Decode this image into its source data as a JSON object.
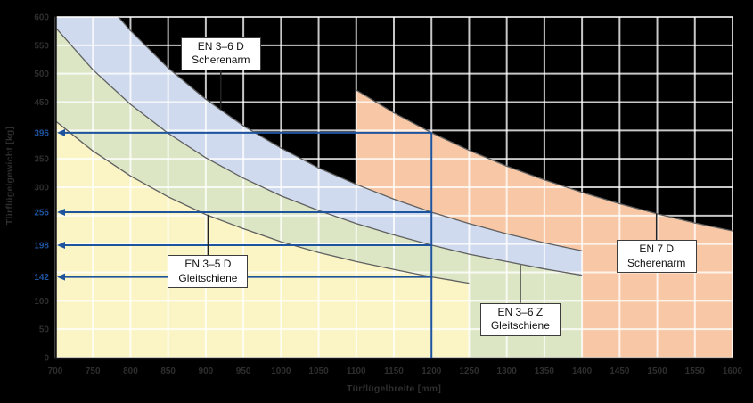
{
  "chart_data": {
    "type": "area",
    "title": "",
    "xlabel": "Türflügelbreite [mm]",
    "ylabel": "Türflügelgewicht [kg]",
    "xlim": [
      700,
      1600
    ],
    "ylim": [
      0,
      600
    ],
    "grid": true,
    "x_ticks": [
      700,
      750,
      800,
      850,
      900,
      950,
      1000,
      1050,
      1100,
      1150,
      1200,
      1250,
      1300,
      1350,
      1400,
      1450,
      1500,
      1550,
      1600
    ],
    "y_gridlines": [
      0,
      50,
      100,
      150,
      200,
      250,
      300,
      350,
      400,
      450,
      500,
      550,
      600
    ],
    "y_ticks": [
      {
        "label": "600",
        "kg": 600,
        "accent": false
      },
      {
        "label": "550",
        "kg": 550,
        "accent": false
      },
      {
        "label": "500",
        "kg": 500,
        "accent": false
      },
      {
        "label": "450",
        "kg": 450,
        "accent": false
      },
      {
        "label": "396",
        "kg": 396,
        "accent": true
      },
      {
        "label": "350",
        "kg": 350,
        "accent": false
      },
      {
        "label": "300",
        "kg": 300,
        "accent": false
      },
      {
        "label": "256",
        "kg": 256,
        "accent": true
      },
      {
        "label": "198",
        "kg": 198,
        "accent": true
      },
      {
        "label": "142",
        "kg": 142,
        "accent": true
      },
      {
        "label": "100",
        "kg": 100,
        "accent": false
      },
      {
        "label": "50",
        "kg": 50,
        "accent": false
      },
      {
        "label": "0",
        "kg": 0,
        "accent": false
      }
    ],
    "series": [
      {
        "name": "EN 7 D Scherenarm",
        "fill": "#f8c7a5",
        "x": [
          1100,
          1150,
          1200,
          1250,
          1300,
          1350,
          1400,
          1450,
          1500,
          1550,
          1600
        ],
        "max_weight_kg": [
          471,
          431,
          396,
          365,
          337,
          313,
          291,
          271,
          253,
          237,
          223
        ]
      },
      {
        "name": "EN 3–6 D Scherenarm",
        "fill": "#cfdaee",
        "x": [
          700,
          750,
          784,
          800,
          850,
          900,
          950,
          1000,
          1050,
          1100,
          1150,
          1200,
          1250,
          1300,
          1350,
          1400
        ],
        "max_weight_kg": [
          600,
          600,
          600,
          576,
          510,
          455,
          408,
          369,
          334,
          305,
          279,
          256,
          236,
          218,
          202,
          188
        ]
      },
      {
        "name": "EN 3–6 Z Gleitschiene",
        "fill": "#dce6c4",
        "x": [
          700,
          750,
          800,
          850,
          900,
          950,
          1000,
          1050,
          1100,
          1150,
          1200,
          1250,
          1300,
          1350,
          1400
        ],
        "max_weight_kg": [
          582,
          507,
          446,
          395,
          352,
          316,
          285,
          259,
          236,
          216,
          198,
          182,
          169,
          156,
          145
        ]
      },
      {
        "name": "EN 3–5 D Gleitschiene",
        "fill": "#fbf4c5",
        "x": [
          700,
          750,
          800,
          850,
          900,
          950,
          1000,
          1050,
          1100,
          1150,
          1200,
          1250
        ],
        "max_weight_kg": [
          417,
          364,
          320,
          283,
          252,
          227,
          204,
          185,
          169,
          155,
          142,
          131
        ]
      }
    ],
    "markers": {
      "width_mm": 1200,
      "weights_kg": [
        396,
        256,
        198,
        142
      ]
    },
    "annotations": [
      {
        "id": "en-3-6-d-scherenarm",
        "lines": [
          "EN 3–6 D",
          "Scherenarm"
        ],
        "box": {
          "mm": 920,
          "kg": 535
        },
        "leader": {
          "mm": 920,
          "kg": 437
        }
      },
      {
        "id": "en-3-5-d-gleitschiene",
        "lines": [
          "EN 3–5 D",
          "Gleitschiene"
        ],
        "box": {
          "mm": 903,
          "kg": 151
        },
        "leader": {
          "mm": 903,
          "kg": 251
        }
      },
      {
        "id": "en-3-6-z-gleitschiene",
        "lines": [
          "EN 3–6 Z",
          "Gleitschiene"
        ],
        "box": {
          "mm": 1318,
          "kg": 67
        },
        "leader": {
          "mm": 1318,
          "kg": 163
        }
      },
      {
        "id": "en-7-d-scherenarm",
        "lines": [
          "EN 7 D",
          "Scherenarm"
        ],
        "box": {
          "mm": 1499,
          "kg": 178
        },
        "leader": {
          "mm": 1499,
          "kg": 254
        }
      }
    ],
    "colors": {
      "background": "#000000",
      "accent_blue": "#1e539e",
      "grid_on_black": "#c7c7c7",
      "curve_stroke": "#606060",
      "tick_text": "#2e2e2e"
    }
  }
}
